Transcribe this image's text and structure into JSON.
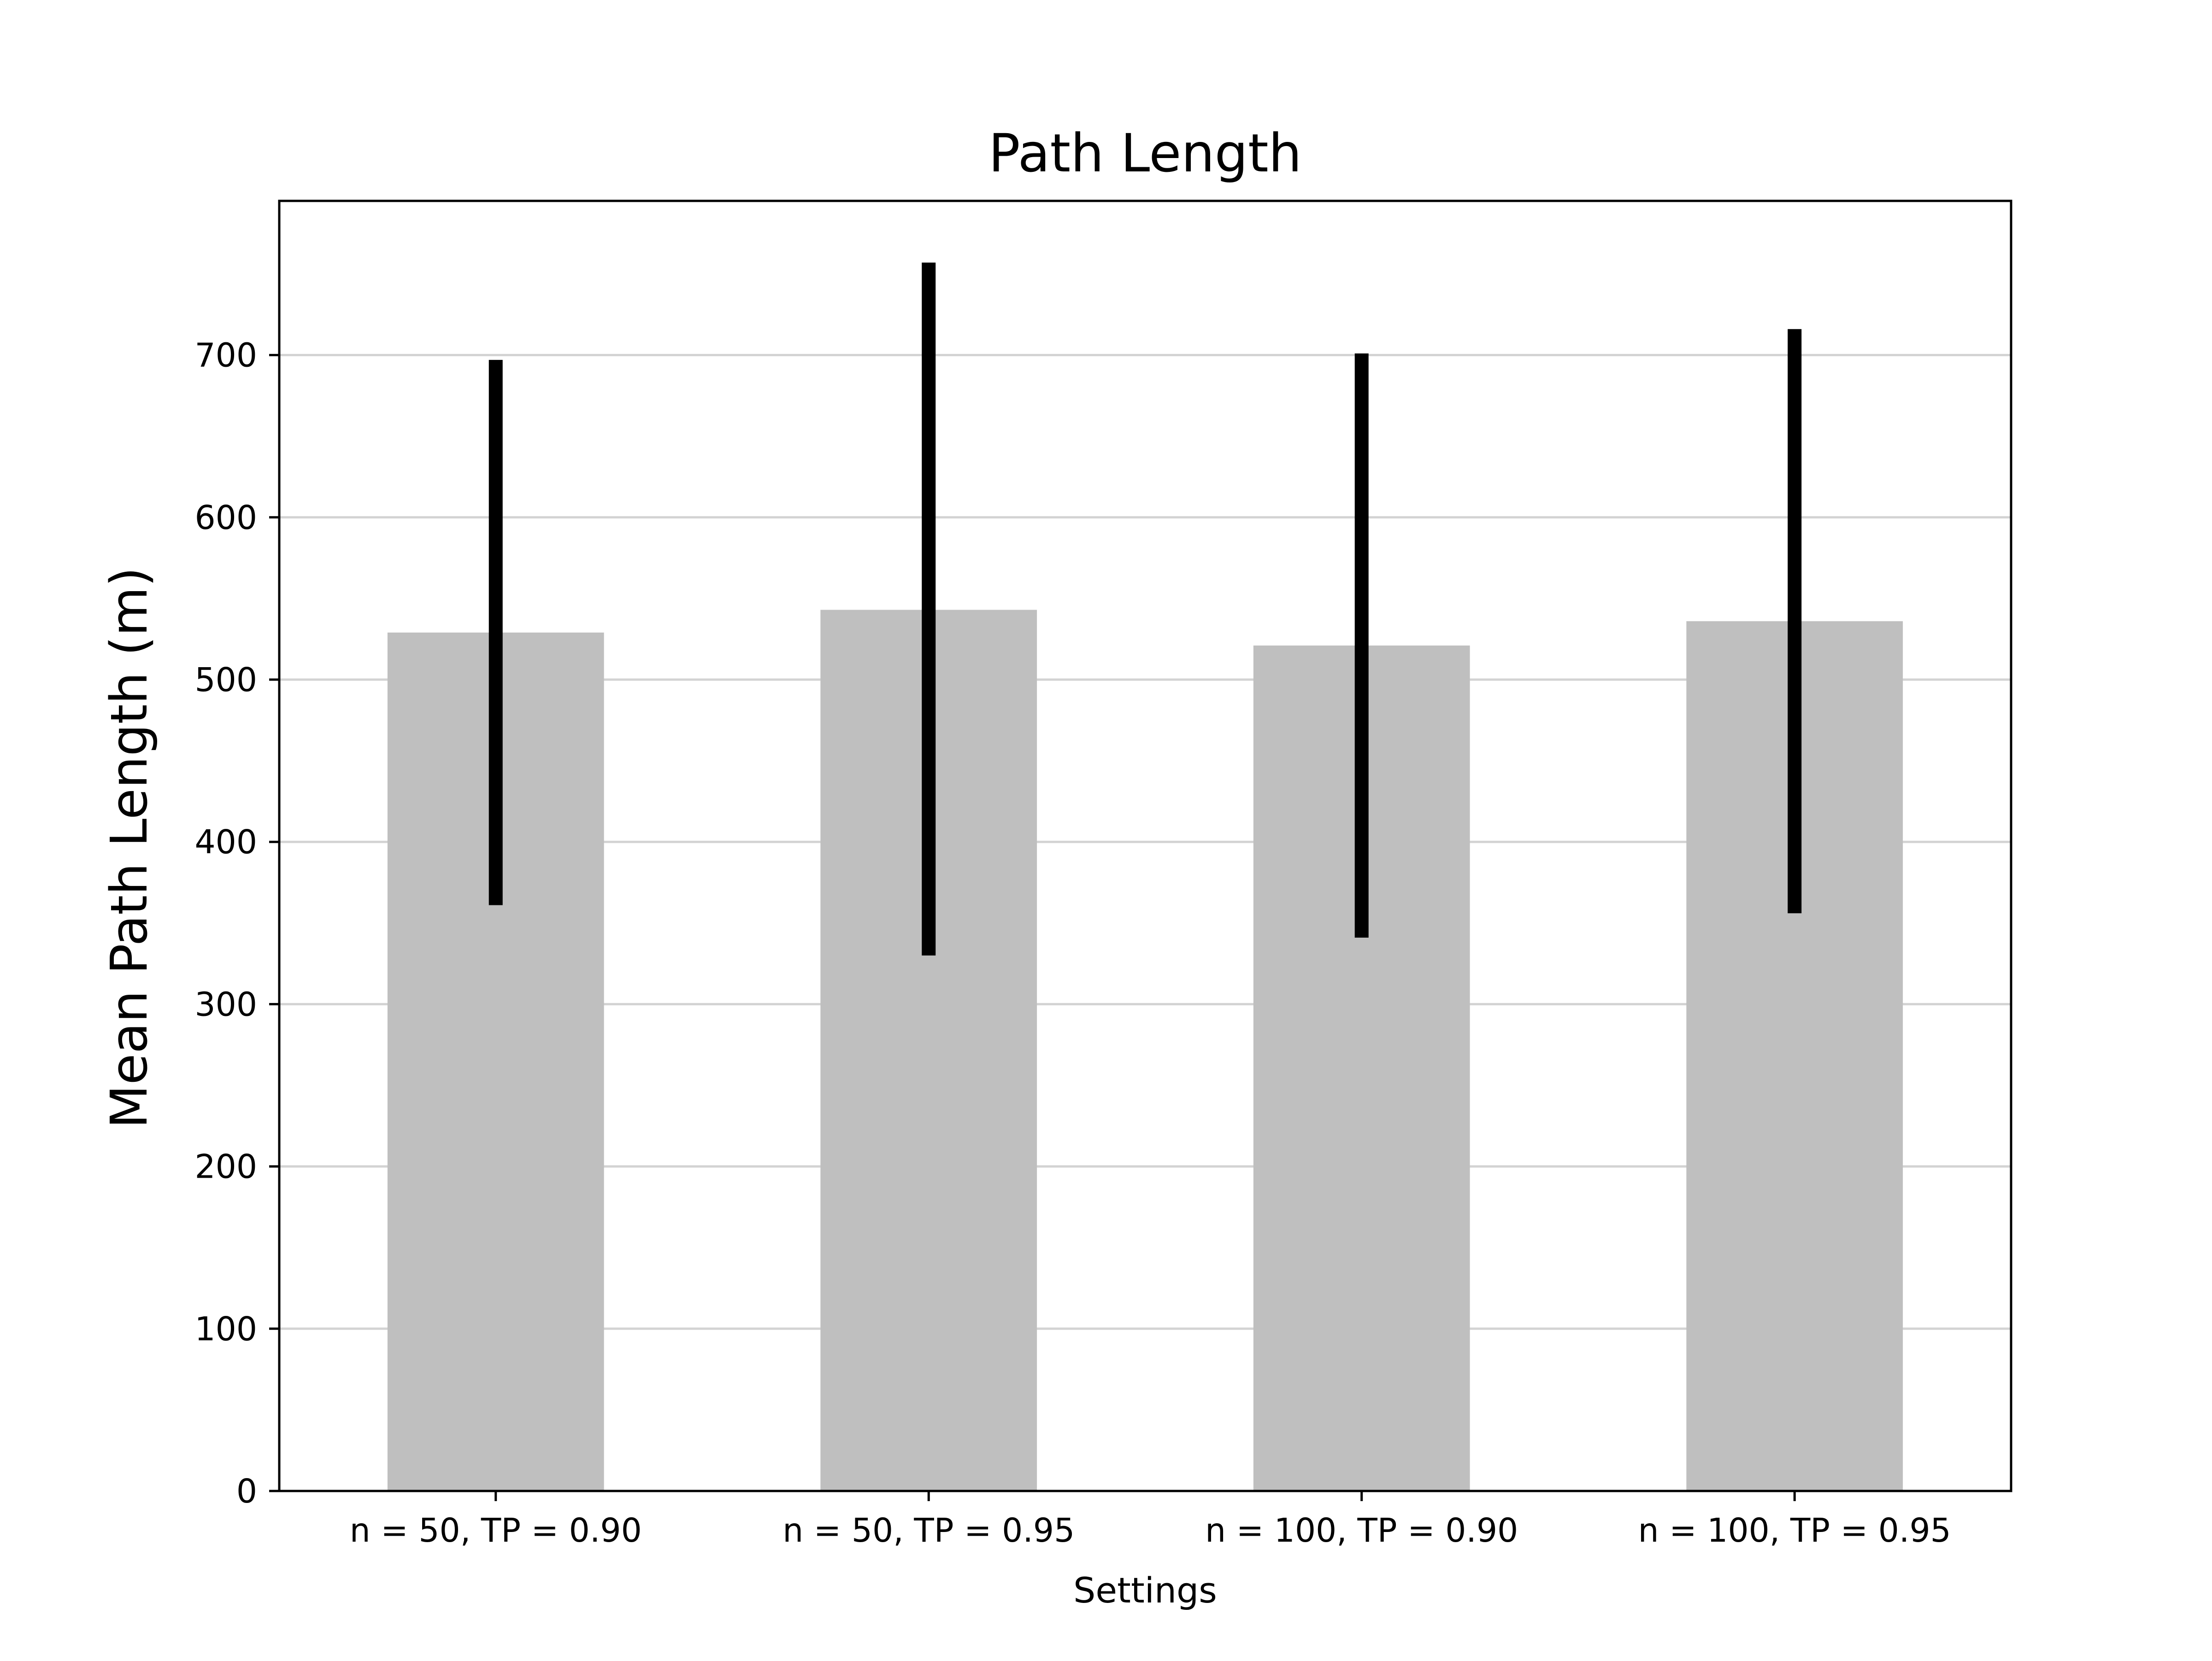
{
  "chart_data": {
    "type": "bar",
    "title": "Path Length",
    "xlabel": "Settings",
    "ylabel": "Mean Path Length (m)",
    "categories": [
      "n = 50, TP = 0.90",
      "n = 50, TP = 0.95",
      "n = 100, TP = 0.90",
      "n = 100, TP = 0.95"
    ],
    "values": [
      529,
      543,
      521,
      536
    ],
    "error_low": [
      361,
      330,
      341,
      356
    ],
    "error_high": [
      697,
      757,
      701,
      716
    ],
    "ylim": [
      0,
      795
    ],
    "yticks": [
      0,
      100,
      200,
      300,
      400,
      500,
      600,
      700
    ],
    "grid": "horizontal",
    "bar_color": "#bfbfbf",
    "error_color": "#000000",
    "grid_color": "#d3d3d3"
  }
}
